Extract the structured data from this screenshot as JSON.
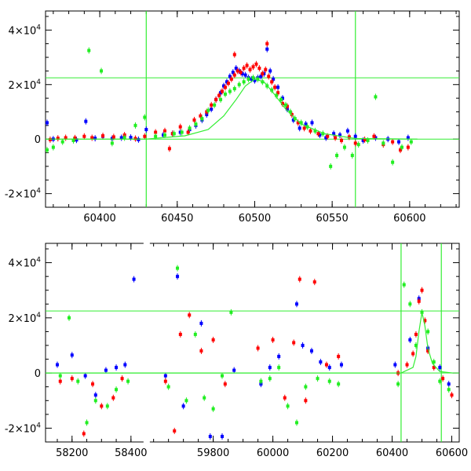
{
  "colors": {
    "blue": "#0000ff",
    "red": "#ff0000",
    "green": "#22ee22",
    "line": "#33ee33",
    "frame": "#000000"
  },
  "chart_data": [
    {
      "type": "scatter",
      "xlim": [
        60365,
        60632
      ],
      "ylim": [
        -25000,
        47000
      ],
      "x_ticks": [
        60400,
        60450,
        60500,
        60550,
        60600
      ],
      "x_tick_labels": [
        "60400",
        "60450",
        "60500",
        "60550",
        "60600"
      ],
      "y_ticks": [
        -20000,
        0,
        20000,
        40000
      ],
      "y_tick_labels": [
        "-2×10⁴",
        "0",
        "2×10⁴",
        "4×10⁴"
      ],
      "grid": false,
      "reference_lines": {
        "vertical": [
          60430,
          60565
        ],
        "horizontal": [
          22500,
          0
        ]
      },
      "model_curve": {
        "x": [
          60365,
          60430,
          60455,
          60470,
          60480,
          60488,
          60494,
          60500,
          60506,
          60512,
          60520,
          60530,
          60545,
          60565,
          60605
        ],
        "y": [
          0,
          0,
          1200,
          3500,
          8500,
          14500,
          19500,
          22000,
          21000,
          17000,
          11000,
          5500,
          2000,
          200,
          0
        ]
      },
      "series": [
        {
          "color": "blue",
          "x": [
            60366,
            60370,
            60385,
            60391,
            60397,
            60402,
            60408,
            60414,
            60420,
            60425,
            60430,
            60441,
            60447,
            60452,
            60458,
            60462,
            60466,
            60469,
            60472,
            60475,
            60478,
            60480,
            60482,
            60484,
            60486,
            60488,
            60490,
            60492,
            60494,
            60496,
            60498,
            60500,
            60502,
            60504,
            60506,
            60508,
            60510,
            60512,
            60515,
            60518,
            60521,
            60525,
            60529,
            60533,
            60537,
            60542,
            60546,
            60551,
            60555,
            60560,
            60565,
            60570,
            60578,
            60586,
            60593,
            60599
          ],
          "y": [
            6000,
            0,
            -300,
            6500,
            300,
            1000,
            200,
            500,
            600,
            -200,
            3500,
            1500,
            2000,
            2500,
            3500,
            5000,
            7000,
            9000,
            11000,
            14500,
            17000,
            19500,
            21000,
            23000,
            24500,
            26000,
            25000,
            24000,
            23500,
            22500,
            22000,
            21500,
            22500,
            23000,
            24000,
            33000,
            25000,
            22000,
            19000,
            15000,
            11000,
            7000,
            4000,
            5500,
            6000,
            1500,
            500,
            2000,
            1500,
            3000,
            1000,
            -500,
            500,
            0,
            -1000,
            500
          ]
        },
        {
          "color": "red",
          "x": [
            60368,
            60373,
            60378,
            60384,
            60390,
            60395,
            60402,
            60409,
            60416,
            60423,
            60429,
            60436,
            60442,
            60447,
            60452,
            60457,
            60461,
            60465,
            60469,
            60472,
            60475,
            60477,
            60479,
            60481,
            60483,
            60485,
            60487,
            60489,
            60491,
            60493,
            60495,
            60497,
            60499,
            60501,
            60503,
            60505,
            60507,
            60509,
            60511,
            60513,
            60515,
            60518,
            60521,
            60524,
            60528,
            60532,
            60536,
            60541,
            60547,
            60552,
            60556,
            60561,
            60565,
            60571,
            60577,
            60583,
            60589,
            60594,
            60599,
            60487,
            60508,
            60445
          ],
          "y": [
            -200,
            300,
            500,
            400,
            1000,
            500,
            1200,
            800,
            1500,
            200,
            1000,
            2500,
            3000,
            2000,
            4500,
            2500,
            7000,
            8500,
            10000,
            12500,
            14500,
            16000,
            17500,
            19000,
            20500,
            22000,
            23500,
            25000,
            24500,
            26000,
            27000,
            25500,
            26500,
            27500,
            26000,
            24000,
            25500,
            23000,
            21000,
            19000,
            17000,
            13000,
            12000,
            9000,
            6000,
            4000,
            3000,
            2000,
            1000,
            500,
            -500,
            800,
            -1500,
            -200,
            1000,
            -2000,
            -1000,
            -4000,
            -3000,
            31000,
            35000,
            -3500
          ]
        },
        {
          "color": "green",
          "x": [
            60366,
            60370,
            60376,
            60383,
            60393,
            60401,
            60408,
            60416,
            60423,
            60429,
            60436,
            60442,
            60448,
            60453,
            60458,
            60462,
            60466,
            60470,
            60474,
            60478,
            60481,
            60484,
            60487,
            60490,
            60493,
            60496,
            60499,
            60502,
            60505,
            60508,
            60511,
            60514,
            60517,
            60520,
            60523,
            60526,
            60530,
            60534,
            60539,
            60544,
            60549,
            60553,
            60558,
            60563,
            60567,
            60573,
            60578,
            60583,
            60589,
            60595,
            60601
          ],
          "y": [
            -4000,
            -3000,
            -1000,
            -500,
            32500,
            25000,
            -1500,
            500,
            5000,
            8000,
            1000,
            1500,
            2000,
            2500,
            4000,
            5500,
            7500,
            10500,
            12500,
            14500,
            16500,
            17500,
            18500,
            20000,
            21000,
            22000,
            22500,
            22000,
            21000,
            19500,
            18000,
            16000,
            14500,
            12500,
            10000,
            7500,
            6000,
            4500,
            3000,
            2000,
            -10000,
            -6000,
            -3000,
            -6000,
            -2000,
            -500,
            15500,
            -1500,
            -8500,
            -3000,
            -1000
          ]
        }
      ]
    },
    {
      "type": "scatter",
      "xlim": [
        58110,
        60625
      ],
      "x_axis_break": "around 58440",
      "ylim": [
        -25000,
        47000
      ],
      "x_ticks": [
        58200,
        58400,
        59800,
        60000,
        60200,
        60400,
        60600
      ],
      "x_tick_labels": [
        "58200",
        "58400",
        "59800",
        "60000",
        "60200",
        "60400",
        "60600"
      ],
      "y_ticks": [
        -20000,
        0,
        20000,
        40000
      ],
      "y_tick_labels": [
        "-2×10⁴",
        "0",
        "2×10⁴",
        "4×10⁴"
      ],
      "grid": false,
      "reference_lines": {
        "vertical": [
          60430,
          60565
        ],
        "horizontal": [
          22500,
          0
        ]
      },
      "model_curve": {
        "x": [
          58110,
          60430,
          60470,
          60480,
          60490,
          60500,
          60510,
          60520,
          60535,
          60560,
          60605
        ],
        "y": [
          0,
          0,
          2000,
          6000,
          15000,
          22000,
          17000,
          9000,
          3500,
          500,
          0
        ]
      },
      "series": [
        {
          "color": "blue",
          "x": [
            58150,
            58200,
            58245,
            58280,
            58315,
            58350,
            58380,
            58410,
            59640,
            59680,
            59700,
            59760,
            59790,
            59830,
            59870,
            59960,
            59990,
            60020,
            60080,
            60100,
            60130,
            60160,
            60190,
            60230,
            60410,
            60460,
            60490,
            60520,
            60560,
            60590
          ],
          "y": [
            3000,
            6500,
            -1000,
            -8000,
            1000,
            2000,
            3000,
            34000,
            -1000,
            35000,
            -12000,
            18000,
            -23000,
            -23000,
            1000,
            -4000,
            2000,
            6000,
            25000,
            10000,
            8000,
            4000,
            2000,
            3000,
            3000,
            12000,
            27000,
            9000,
            2000,
            -4000
          ]
        },
        {
          "color": "red",
          "x": [
            58160,
            58200,
            58240,
            58270,
            58300,
            58340,
            58370,
            59640,
            59670,
            59690,
            59720,
            59760,
            59800,
            59840,
            59950,
            60000,
            60040,
            60070,
            60090,
            60110,
            60140,
            60180,
            60220,
            60420,
            60450,
            60470,
            60480,
            60490,
            60500,
            60510,
            60520,
            60540,
            60570,
            60600
          ],
          "y": [
            -3000,
            -2000,
            -22000,
            -4000,
            -12000,
            -9000,
            -2000,
            -3000,
            -21000,
            14000,
            21000,
            8000,
            12000,
            -4000,
            9000,
            12000,
            -9000,
            11000,
            34000,
            -10000,
            33000,
            3000,
            6000,
            0,
            3000,
            7000,
            14000,
            26000,
            30000,
            19000,
            8000,
            2000,
            -2000,
            -8000
          ]
        },
        {
          "color": "green",
          "x": [
            58160,
            58190,
            58220,
            58250,
            58280,
            58320,
            58350,
            58390,
            59650,
            59680,
            59710,
            59740,
            59770,
            59800,
            59830,
            59860,
            59960,
            59990,
            60020,
            60050,
            60080,
            60110,
            60150,
            60190,
            60220,
            60420,
            60440,
            60460,
            60480,
            60500,
            60520,
            60540,
            60560,
            60590
          ],
          "y": [
            -1000,
            20000,
            -3000,
            -18000,
            -10000,
            -12000,
            -6000,
            -3000,
            -5000,
            38000,
            -10000,
            14000,
            -9000,
            -13000,
            -1000,
            22000,
            -3000,
            -2000,
            2000,
            -12000,
            -18000,
            -5000,
            -2000,
            -3000,
            -4000,
            -4000,
            32000,
            25000,
            10000,
            22000,
            15000,
            4000,
            -3000,
            -6000
          ]
        }
      ]
    }
  ]
}
